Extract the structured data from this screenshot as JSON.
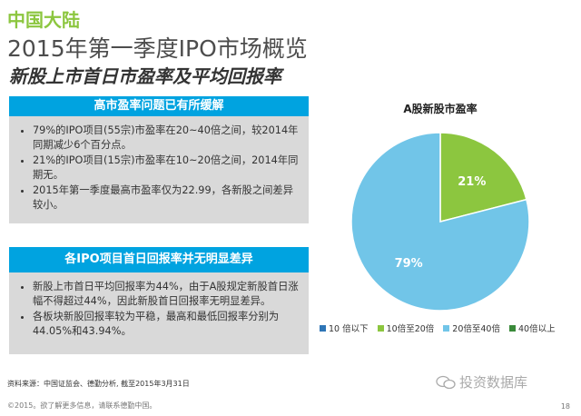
{
  "header": {
    "region": "中国大陆",
    "title": "2015年第一季度IPO市场概览",
    "subtitle": "新股上市首日市盈率及平均回报率"
  },
  "panels": [
    {
      "heading": "高市盈率问题已有所缓解",
      "bullets": [
        "79%的IPO项目(55宗)市盈率在20~40倍之间，较2014年同期减少6个百分点。",
        "21%的IPO项目(15宗)市盈率在10~20倍之间，2014年同期无。",
        "2015年第一季度最高市盈率仅为22.99，各新股之间差异较小。"
      ]
    },
    {
      "heading": "各IPO项目首日回报率并无明显差异",
      "bullets": [
        "新股上市首日平均回报率为44%，由于A股规定新股首日涨幅不得超过44%，因此新股首日回报率无明显差异。",
        "各板块新股回报率较为平稳，最高和最低回报率分别为44.05%和43.94%。"
      ]
    }
  ],
  "footer": {
    "source": "资料来源：中国证监会、德勤分析, 截至2015年3月31日",
    "copyright": "©2015。欲了解更多信息，请联系德勤中国。",
    "page": "18",
    "watermark": "投资数据库"
  },
  "chart_data": {
    "type": "pie",
    "title": "A股新股市盈率",
    "categories": [
      "10 倍以下",
      "10倍至20倍",
      "20倍至40倍",
      "40倍以上"
    ],
    "values": [
      0,
      21,
      79,
      0
    ],
    "value_labels": [
      "",
      "21%",
      "79%",
      ""
    ],
    "colors": [
      "#2e75b6",
      "#8cc63f",
      "#71c5e8",
      "#3a8a3a"
    ],
    "legend": "bottom"
  }
}
